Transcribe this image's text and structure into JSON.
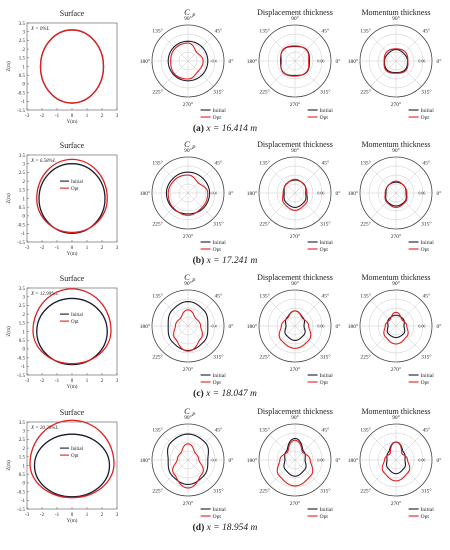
{
  "figure": {
    "colors": {
      "initial": "#1a1a2e",
      "opt": "#e02020",
      "grid": "#bdbdbd",
      "axis": "#555555",
      "text": "#222222"
    },
    "panel_titles": {
      "surface": "Surface",
      "cp": "C",
      "cp_sub": "P",
      "disp": "Displacement thickness",
      "mom": "Momentum thickness"
    },
    "legend": {
      "initial": "Initial",
      "opt": "Opt"
    },
    "surface_axes": {
      "xlabel": "Y(m)",
      "ylabel": "Z(m)",
      "xticks": [
        "-3",
        "-2",
        "-1",
        "0",
        "1",
        "2",
        "3"
      ],
      "yticks": [
        "3.5",
        "3",
        "2.5",
        "2",
        "1.5",
        "1",
        "0.5",
        "0",
        "-0.5",
        "-1",
        "-1.5"
      ]
    },
    "polar_angle_labels": [
      "90°",
      "45°",
      "0°",
      "315°",
      "270°",
      "225°",
      "180°",
      "135°"
    ],
    "rows": [
      {
        "caption_letter": "(a)",
        "caption_text": "x = 16.414 m",
        "surface_annotation": "X = 0%L",
        "cp_rlabel": "-0.4",
        "disp_rlabel": "0.06",
        "mom_rlabel": "0.06"
      },
      {
        "caption_letter": "(b)",
        "caption_text": "x = 17.241 m",
        "surface_annotation": "X = 6.58%L",
        "cp_rlabel": "-0.4",
        "disp_rlabel": "0.06",
        "mom_rlabel": "0.06"
      },
      {
        "caption_letter": "(c)",
        "caption_text": "x = 18.047 m",
        "surface_annotation": "X = 12.99%L",
        "cp_rlabel": "-0.4",
        "disp_rlabel": "0.06",
        "mom_rlabel": "0.06"
      },
      {
        "caption_letter": "(d)",
        "caption_text": "x = 18.954 m",
        "surface_annotation": "X = 20.20%L",
        "cp_rlabel": "-0.4",
        "disp_rlabel": "0.06",
        "mom_rlabel": "0.06"
      }
    ]
  },
  "chart_data": [
    {
      "type": "line",
      "panel": "Surface (a)",
      "xlabel": "Y(m)",
      "ylabel": "Z(m)",
      "xlim": [
        -3,
        3
      ],
      "ylim": [
        -1.5,
        3.5
      ],
      "series": [
        {
          "name": "Initial",
          "shape": "ellipse",
          "cy": 1.0,
          "ry_top": 2.1,
          "ry_bot": 2.1,
          "rx": 2.1
        },
        {
          "name": "Opt",
          "shape": "ellipse",
          "cy": 1.0,
          "ry_top": 2.1,
          "ry_bot": 2.1,
          "rx": 2.1
        }
      ]
    },
    {
      "type": "line",
      "panel": "Surface (b)",
      "xlabel": "Y(m)",
      "ylabel": "Z(m)",
      "xlim": [
        -3,
        3
      ],
      "ylim": [
        -1.5,
        3.5
      ],
      "series": [
        {
          "name": "Initial",
          "shape": "ellipse",
          "cy": 1.0,
          "ry_top": 2.0,
          "ry_bot": 2.0,
          "rx": 2.2
        },
        {
          "name": "Opt",
          "shape": "ellipse",
          "cy": 1.0,
          "ry_top": 2.25,
          "ry_bot": 1.95,
          "rx": 2.35
        }
      ]
    },
    {
      "type": "line",
      "panel": "Surface (c)",
      "xlabel": "Y(m)",
      "ylabel": "Z(m)",
      "xlim": [
        -3,
        3
      ],
      "ylim": [
        -1.5,
        3.5
      ],
      "series": [
        {
          "name": "Initial",
          "shape": "ellipse",
          "cy": 1.0,
          "ry_top": 1.9,
          "ry_bot": 1.9,
          "rx": 2.35
        },
        {
          "name": "Opt",
          "shape": "ellipse",
          "cy": 1.05,
          "ry_top": 2.4,
          "ry_bot": 1.9,
          "rx": 2.6
        }
      ]
    },
    {
      "type": "line",
      "panel": "Surface (d)",
      "xlabel": "Y(m)",
      "ylabel": "Z(m)",
      "xlim": [
        -3,
        3
      ],
      "ylim": [
        -1.5,
        3.5
      ],
      "series": [
        {
          "name": "Initial",
          "shape": "ellipse",
          "cy": 1.0,
          "ry_top": 1.8,
          "ry_bot": 1.8,
          "rx": 2.5
        },
        {
          "name": "Opt",
          "shape": "ellipse",
          "cy": 1.1,
          "ry_top": 2.5,
          "ry_bot": 1.95,
          "rx": 2.8
        }
      ]
    },
    {
      "type": "line",
      "panel": "Cp (a)",
      "theta_deg": [
        0,
        45,
        90,
        135,
        180,
        225,
        270,
        315
      ],
      "series": [
        {
          "name": "Initial",
          "r": [
            0.55,
            0.55,
            0.55,
            0.55,
            0.55,
            0.55,
            0.55,
            0.55
          ]
        },
        {
          "name": "Opt",
          "r": [
            0.42,
            0.34,
            0.5,
            0.5,
            0.48,
            0.52,
            0.5,
            0.4
          ]
        }
      ]
    },
    {
      "type": "line",
      "panel": "Disp (a)",
      "theta_deg": [
        0,
        45,
        90,
        135,
        180,
        225,
        270,
        315
      ],
      "series": [
        {
          "name": "Initial",
          "r": [
            0.4,
            0.45,
            0.4,
            0.45,
            0.4,
            0.45,
            0.4,
            0.45
          ]
        },
        {
          "name": "Opt",
          "r": [
            0.38,
            0.44,
            0.42,
            0.46,
            0.38,
            0.46,
            0.42,
            0.44
          ]
        }
      ]
    },
    {
      "type": "line",
      "panel": "Mom (a)",
      "theta_deg": [
        0,
        45,
        90,
        135,
        180,
        225,
        270,
        315
      ],
      "series": [
        {
          "name": "Initial",
          "r": [
            0.32,
            0.3,
            0.32,
            0.3,
            0.32,
            0.35,
            0.32,
            0.35
          ]
        },
        {
          "name": "Opt",
          "r": [
            0.33,
            0.36,
            0.34,
            0.36,
            0.33,
            0.38,
            0.34,
            0.38
          ]
        }
      ]
    },
    {
      "type": "line",
      "panel": "Cp (b)",
      "theta_deg": [
        0,
        45,
        90,
        135,
        180,
        225,
        270,
        315
      ],
      "series": [
        {
          "name": "Initial",
          "r": [
            0.6,
            0.58,
            0.58,
            0.58,
            0.6,
            0.6,
            0.58,
            0.6
          ]
        },
        {
          "name": "Opt",
          "r": [
            0.55,
            0.4,
            0.5,
            0.52,
            0.55,
            0.58,
            0.62,
            0.56
          ]
        }
      ]
    },
    {
      "type": "line",
      "panel": "Disp (b)",
      "theta_deg": [
        0,
        45,
        90,
        135,
        180,
        225,
        270,
        315
      ],
      "series": [
        {
          "name": "Initial",
          "r": [
            0.3,
            0.35,
            0.36,
            0.35,
            0.3,
            0.36,
            0.4,
            0.36
          ]
        },
        {
          "name": "Opt",
          "r": [
            0.33,
            0.34,
            0.38,
            0.34,
            0.33,
            0.42,
            0.48,
            0.42
          ]
        }
      ]
    },
    {
      "type": "line",
      "panel": "Mom (b)",
      "theta_deg": [
        0,
        45,
        90,
        135,
        180,
        225,
        270,
        315
      ],
      "series": [
        {
          "name": "Initial",
          "r": [
            0.28,
            0.3,
            0.3,
            0.3,
            0.28,
            0.34,
            0.36,
            0.34
          ]
        },
        {
          "name": "Opt",
          "r": [
            0.3,
            0.3,
            0.33,
            0.3,
            0.3,
            0.36,
            0.4,
            0.36
          ]
        }
      ]
    },
    {
      "type": "line",
      "panel": "Cp (c)",
      "theta_deg": [
        0,
        45,
        90,
        135,
        180,
        225,
        270,
        315
      ],
      "series": [
        {
          "name": "Initial",
          "r": [
            0.55,
            0.62,
            0.68,
            0.62,
            0.55,
            0.62,
            0.68,
            0.62
          ]
        },
        {
          "name": "Opt",
          "r": [
            0.35,
            0.3,
            0.45,
            0.3,
            0.35,
            0.5,
            0.7,
            0.5
          ]
        }
      ]
    },
    {
      "type": "line",
      "panel": "Disp (c)",
      "theta_deg": [
        0,
        45,
        90,
        135,
        180,
        225,
        270,
        315
      ],
      "series": [
        {
          "name": "Initial",
          "r": [
            0.25,
            0.32,
            0.42,
            0.32,
            0.25,
            0.35,
            0.4,
            0.35
          ]
        },
        {
          "name": "Opt",
          "r": [
            0.38,
            0.3,
            0.42,
            0.3,
            0.38,
            0.55,
            0.62,
            0.55
          ]
        }
      ]
    },
    {
      "type": "line",
      "panel": "Mom (c)",
      "theta_deg": [
        0,
        45,
        90,
        135,
        180,
        225,
        270,
        315
      ],
      "series": [
        {
          "name": "Initial",
          "r": [
            0.22,
            0.28,
            0.3,
            0.28,
            0.22,
            0.3,
            0.32,
            0.3
          ]
        },
        {
          "name": "Opt",
          "r": [
            0.3,
            0.24,
            0.38,
            0.24,
            0.3,
            0.42,
            0.5,
            0.42
          ]
        }
      ]
    },
    {
      "type": "line",
      "panel": "Cp (d)",
      "theta_deg": [
        0,
        45,
        90,
        135,
        180,
        225,
        270,
        315
      ],
      "series": [
        {
          "name": "Initial",
          "r": [
            0.55,
            0.68,
            0.72,
            0.68,
            0.55,
            0.62,
            0.68,
            0.62
          ]
        },
        {
          "name": "Opt",
          "r": [
            0.3,
            0.28,
            0.45,
            0.28,
            0.3,
            0.55,
            0.78,
            0.55
          ]
        }
      ]
    },
    {
      "type": "line",
      "panel": "Disp (d)",
      "theta_deg": [
        0,
        45,
        90,
        135,
        180,
        225,
        270,
        315
      ],
      "series": [
        {
          "name": "Initial",
          "r": [
            0.28,
            0.34,
            0.6,
            0.34,
            0.28,
            0.38,
            0.45,
            0.38
          ]
        },
        {
          "name": "Opt",
          "r": [
            0.42,
            0.3,
            0.55,
            0.3,
            0.42,
            0.62,
            0.72,
            0.62
          ]
        }
      ]
    },
    {
      "type": "line",
      "panel": "Mom (d)",
      "theta_deg": [
        0,
        45,
        90,
        135,
        180,
        225,
        270,
        315
      ],
      "series": [
        {
          "name": "Initial",
          "r": [
            0.25,
            0.3,
            0.5,
            0.3,
            0.25,
            0.32,
            0.38,
            0.32
          ]
        },
        {
          "name": "Opt",
          "r": [
            0.32,
            0.24,
            0.5,
            0.24,
            0.32,
            0.48,
            0.58,
            0.48
          ]
        }
      ]
    }
  ]
}
